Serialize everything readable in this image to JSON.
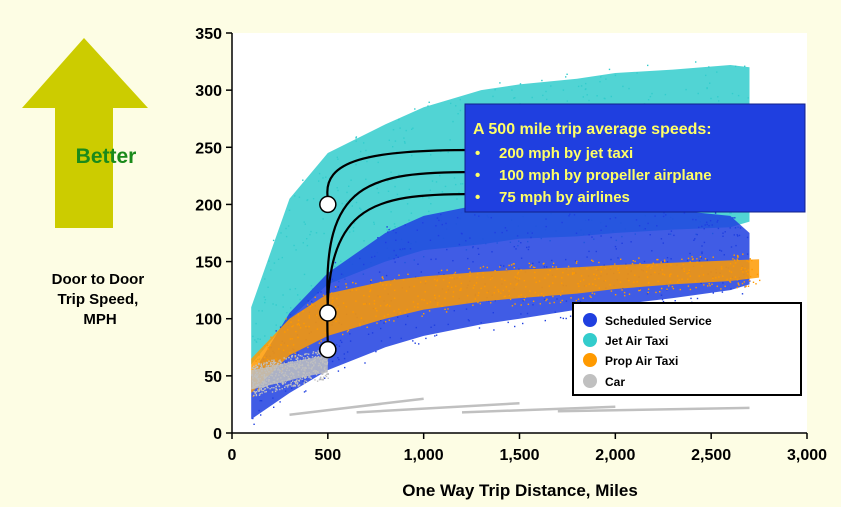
{
  "chart_data": {
    "type": "scatter",
    "title": "",
    "xlabel": "One Way Trip Distance, Miles",
    "ylabel": "Door to Door Trip Speed, MPH",
    "ylabel_lines": [
      "Door to Door",
      "Trip Speed,",
      "MPH"
    ],
    "xlim": [
      0,
      3000
    ],
    "ylim": [
      0,
      350
    ],
    "x_ticks": [
      0,
      500,
      1000,
      1500,
      2000,
      2500,
      3000
    ],
    "x_tick_labels": [
      "0",
      "500",
      "1,000",
      "1,500",
      "2,000",
      "2,500",
      "3,000"
    ],
    "y_ticks": [
      0,
      50,
      100,
      150,
      200,
      250,
      300,
      350
    ],
    "y_tick_labels": [
      "0",
      "50",
      "100",
      "150",
      "200",
      "250",
      "300",
      "350"
    ],
    "grid": false,
    "legend_position": "bottom-right",
    "series": [
      {
        "name": "Jet Air Taxi",
        "color": "#33cccc",
        "band": {
          "x": [
            100,
            300,
            500,
            800,
            1000,
            1300,
            1500,
            1800,
            2000,
            2300,
            2600,
            2700
          ],
          "low": [
            60,
            100,
            130,
            150,
            160,
            165,
            170,
            172,
            175,
            178,
            180,
            185
          ],
          "high": [
            110,
            205,
            245,
            270,
            285,
            300,
            305,
            310,
            315,
            318,
            322,
            320
          ]
        }
      },
      {
        "name": "Scheduled Service",
        "color": "#1f3fe0",
        "band": {
          "x": [
            100,
            300,
            500,
            800,
            1000,
            1300,
            1500,
            1800,
            2000,
            2300,
            2600,
            2700
          ],
          "low": [
            12,
            35,
            55,
            75,
            85,
            95,
            100,
            108,
            112,
            118,
            125,
            130
          ],
          "high": [
            50,
            105,
            140,
            175,
            190,
            200,
            210,
            205,
            200,
            195,
            190,
            175
          ]
        }
      },
      {
        "name": "Prop Air Taxi",
        "color": "#ff9a00",
        "band": {
          "x": [
            100,
            300,
            500,
            800,
            1000,
            1300,
            1500,
            1800,
            2000,
            2300,
            2600,
            2750
          ],
          "low": [
            35,
            68,
            85,
            100,
            108,
            115,
            118,
            122,
            126,
            130,
            133,
            136
          ],
          "high": [
            65,
            100,
            122,
            133,
            137,
            141,
            143,
            145,
            147,
            149,
            151,
            152
          ]
        }
      },
      {
        "name": "Car",
        "color": "#c0c0c0",
        "band": {
          "x": [
            100,
            200,
            300,
            400,
            500
          ],
          "low": [
            38,
            42,
            46,
            50,
            53
          ],
          "high": [
            55,
            58,
            62,
            65,
            68
          ]
        },
        "streaks": [
          {
            "x": [
              300,
              1000
            ],
            "y": [
              16,
              30
            ]
          },
          {
            "x": [
              650,
              1500
            ],
            "y": [
              18,
              26
            ]
          },
          {
            "x": [
              1200,
              2000
            ],
            "y": [
              18,
              23
            ]
          },
          {
            "x": [
              1700,
              2700
            ],
            "y": [
              19,
              22
            ]
          }
        ]
      }
    ],
    "highlight_points": [
      {
        "x": 500,
        "y": 200
      },
      {
        "x": 500,
        "y": 105
      },
      {
        "x": 500,
        "y": 73
      }
    ],
    "annotation": {
      "title": "A 500 mile trip average speeds:",
      "lines": [
        "200 mph by jet taxi",
        "100 mph by propeller airplane",
        "75 mph by airlines"
      ]
    },
    "arrow_label": "Better"
  },
  "colors": {
    "page_background": "#fdfde4",
    "plot_background": "#ffffff",
    "arrow_fill": "#cccc00",
    "arrow_label": "#1a8a1a",
    "annotation_bg": "#1f3fe0",
    "annotation_text": "#ffff66"
  }
}
